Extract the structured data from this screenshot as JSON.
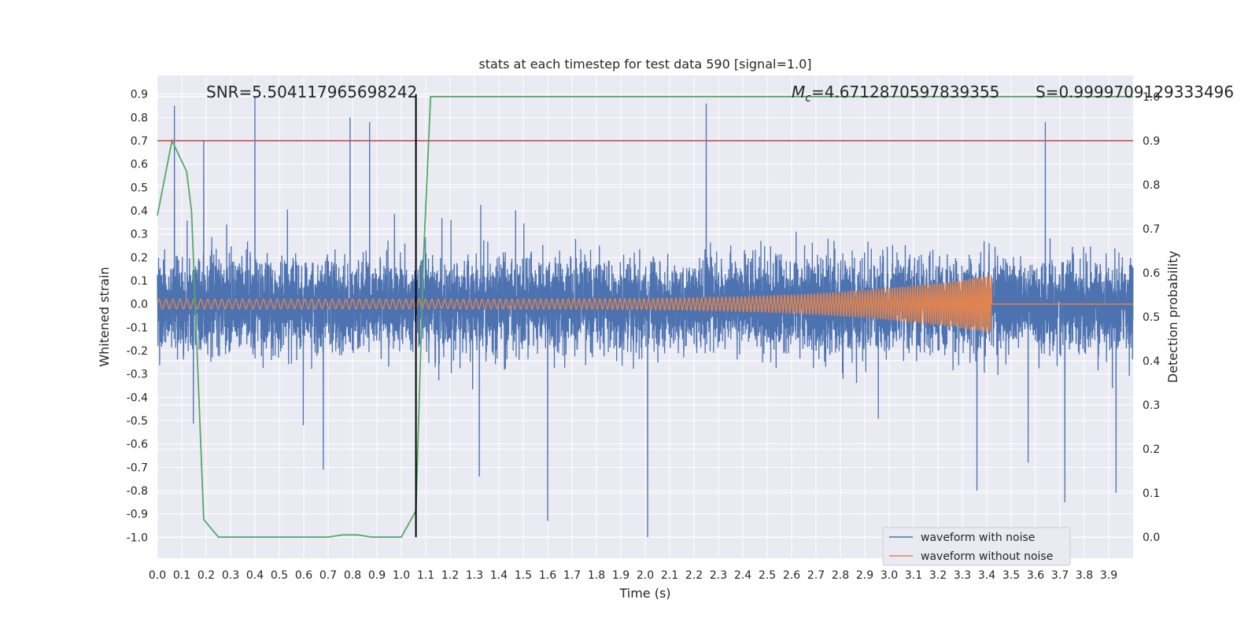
{
  "chart_data": {
    "type": "line",
    "title": "stats at each timestep for test data 590 [signal=1.0]",
    "xlabel": "Time (s)",
    "ylabel": "Whitened strain",
    "y2label": "Detection probability",
    "xlim": [
      0.0,
      4.0
    ],
    "ylim": [
      -1.09,
      0.98
    ],
    "y2lim": [
      -0.048,
      1.048
    ],
    "xticks": [
      "0.0",
      "0.1",
      "0.2",
      "0.3",
      "0.4",
      "0.5",
      "0.6",
      "0.7",
      "0.8",
      "0.9",
      "1.0",
      "1.1",
      "1.2",
      "1.3",
      "1.4",
      "1.5",
      "1.6",
      "1.7",
      "1.8",
      "1.9",
      "2.0",
      "2.1",
      "2.2",
      "2.3",
      "2.4",
      "2.5",
      "2.6",
      "2.7",
      "2.8",
      "2.9",
      "3.0",
      "3.1",
      "3.2",
      "3.3",
      "3.4",
      "3.5",
      "3.6",
      "3.7",
      "3.8",
      "3.9"
    ],
    "yticks": [
      "0.9",
      "0.8",
      "0.7",
      "0.6",
      "0.5",
      "0.4",
      "0.3",
      "0.2",
      "0.1",
      "0.0",
      "-0.1",
      "-0.2",
      "-0.3",
      "-0.4",
      "-0.5",
      "-0.6",
      "-0.7",
      "-0.8",
      "-0.9",
      "-1.0"
    ],
    "y2ticks": [
      "1.0",
      "0.9",
      "0.8",
      "0.7",
      "0.6",
      "0.5",
      "0.4",
      "0.3",
      "0.2",
      "0.1",
      "0.0"
    ],
    "grid": true,
    "legend_position": "bottom-right",
    "annotations": {
      "snr": "SNR=5.504117965698242",
      "mc_symbol": "M",
      "mc_sub": "c",
      "mc_value": "=4.6712870597839355",
      "s": "S=0.9999709129333496"
    },
    "threshold": {
      "axis": "y2",
      "value": 0.9,
      "color": "#c44e52"
    },
    "marker_line": {
      "x": 1.06,
      "y_from": -1.0,
      "y_to": 0.9,
      "color": "#000000"
    },
    "series": [
      {
        "name": "waveform with noise",
        "axis": "y",
        "color": "#4c72b0",
        "kind": "noise",
        "sample_rate": 2048,
        "spread": 0.32,
        "peaks": [
          [
            0.07,
            0.85
          ],
          [
            0.19,
            0.7
          ],
          [
            0.4,
            0.89
          ],
          [
            0.79,
            0.8
          ],
          [
            0.87,
            0.78
          ],
          [
            2.25,
            0.86
          ],
          [
            3.64,
            0.78
          ],
          [
            1.6,
            -0.93
          ],
          [
            2.01,
            -1.0
          ],
          [
            3.72,
            -0.85
          ],
          [
            3.93,
            -0.81
          ],
          [
            3.36,
            -0.8
          ],
          [
            0.68,
            -0.71
          ],
          [
            1.32,
            -0.74
          ],
          [
            3.57,
            -0.68
          ]
        ]
      },
      {
        "name": "waveform without noise",
        "axis": "y",
        "color": "#dd8452",
        "kind": "chirp",
        "t_merge": 3.42,
        "amp_start": 0.02,
        "amp_end": 0.12,
        "f_start": 35,
        "f_end": 120
      },
      {
        "name": "Detection probability",
        "axis": "y2",
        "color": "#55a868",
        "kind": "line",
        "x": [
          0.0,
          0.06,
          0.12,
          0.14,
          0.19,
          0.25,
          0.4,
          0.6,
          0.7,
          0.76,
          0.82,
          0.88,
          1.0,
          1.06,
          1.09,
          1.12,
          1.2,
          2.0,
          3.0,
          4.0
        ],
        "y": [
          0.73,
          0.9,
          0.83,
          0.74,
          0.04,
          0.0,
          0.0,
          0.0,
          0.0,
          0.005,
          0.005,
          0.0,
          0.0,
          0.06,
          0.62,
          1.0,
          1.0,
          1.0,
          1.0,
          1.0
        ]
      }
    ]
  }
}
